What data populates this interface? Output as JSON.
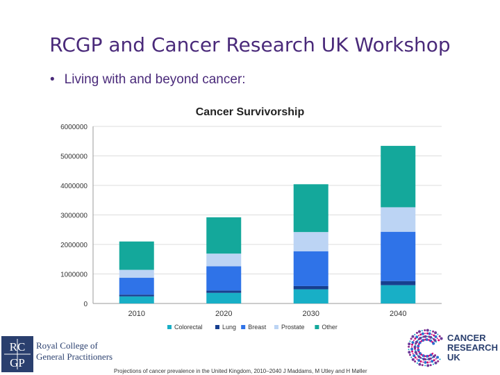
{
  "slide": {
    "title": "RCGP and Cancer Research UK Workshop",
    "bullet": "Living with and beyond cancer:"
  },
  "chart_data": {
    "type": "bar",
    "stacked": true,
    "title": "Cancer Survivorship",
    "xlabel": "",
    "ylabel": "",
    "categories": [
      "2010",
      "2020",
      "2030",
      "2040"
    ],
    "ylim": [
      0,
      6000000
    ],
    "yticks": [
      0,
      1000000,
      2000000,
      3000000,
      4000000,
      5000000,
      6000000
    ],
    "grid": true,
    "legend_position": "bottom",
    "series": [
      {
        "name": "Colorectal",
        "color": "#18afc6",
        "values": [
          240000,
          360000,
          480000,
          620000
        ]
      },
      {
        "name": "Lung",
        "color": "#173f8f",
        "values": [
          60000,
          80000,
          110000,
          140000
        ]
      },
      {
        "name": "Breast",
        "color": "#2f73e8",
        "values": [
          570000,
          820000,
          1180000,
          1670000
        ]
      },
      {
        "name": "Prostate",
        "color": "#bcd4f4",
        "values": [
          270000,
          430000,
          650000,
          830000
        ]
      },
      {
        "name": "Other",
        "color": "#14a89b",
        "values": [
          960000,
          1230000,
          1620000,
          2080000
        ]
      }
    ]
  },
  "logos": {
    "rcgp_mark_top": "RC",
    "rcgp_mark_bottom": "GP",
    "rcgp_name_line1": "Royal College of",
    "rcgp_name_line2": "General Practitioners",
    "cruk_line1": "CANCER",
    "cruk_line2": "RESEARCH",
    "cruk_line3": "UK"
  },
  "footnote": "Projections of cancer prevalence in the United Kingdom, 2010–2040 J Maddams, M Utley and H Møller",
  "colors": {
    "title": "#4a2a7a",
    "rcgp_blue": "#2a3f6e"
  }
}
